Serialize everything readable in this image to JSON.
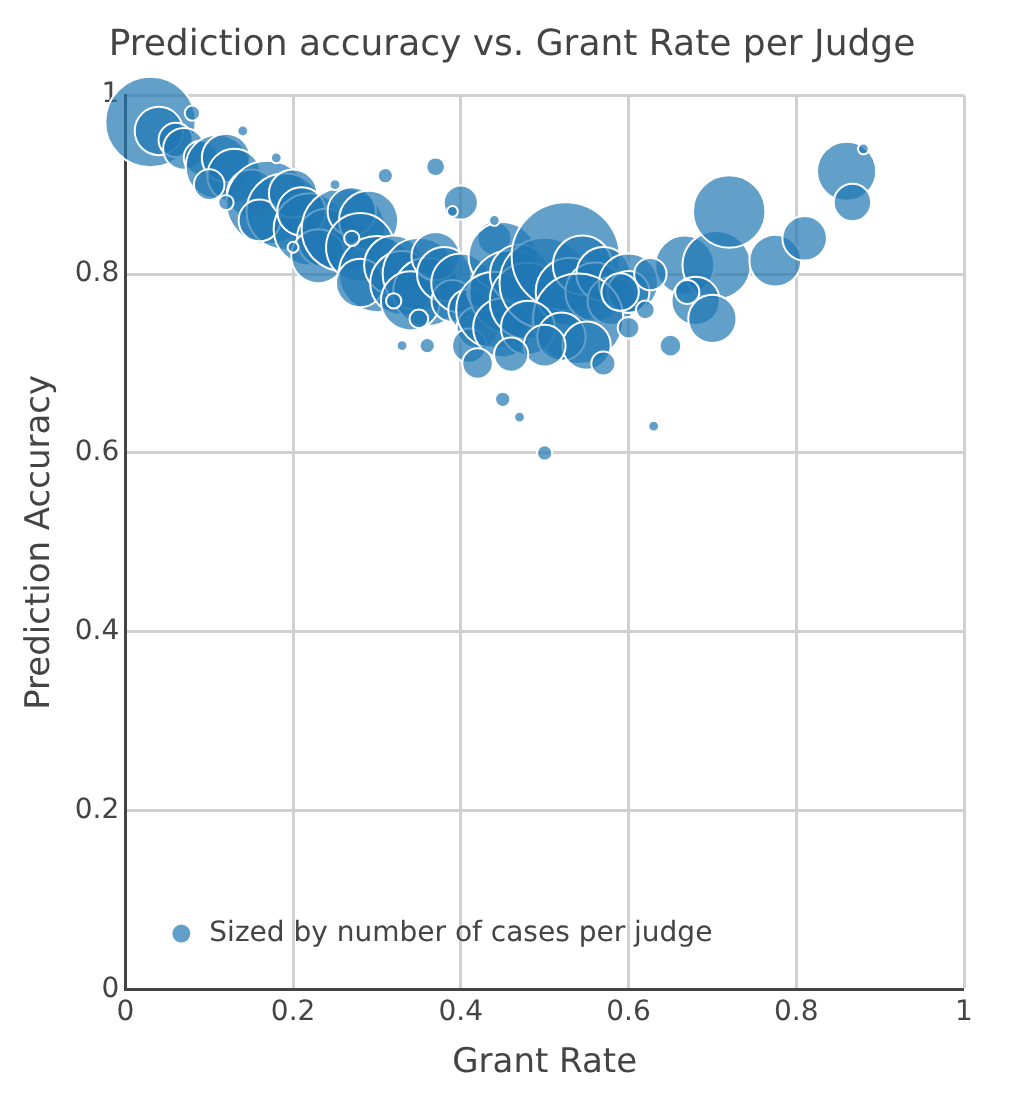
{
  "chart_data": {
    "type": "bubble",
    "title": "Prediction accuracy vs. Grant Rate per Judge",
    "xlabel": "Grant Rate",
    "ylabel": "Prediction Accuracy",
    "xlim": [
      0,
      1
    ],
    "ylim": [
      0,
      1
    ],
    "xticks": [
      0,
      0.2,
      0.4,
      0.6,
      0.8,
      1
    ],
    "yticks": [
      0,
      0.2,
      0.4,
      0.6,
      0.8,
      1
    ],
    "grid": true,
    "legend": "bottom left",
    "marker": "circle",
    "series": [
      {
        "name": "Sized by number of cases per judge",
        "color": "#1f77b4",
        "x": [
          0.03,
          0.04,
          0.06,
          0.07,
          0.09,
          0.11,
          0.12,
          0.13,
          0.1,
          0.15,
          0.17,
          0.19,
          0.16,
          0.2,
          0.22,
          0.21,
          0.24,
          0.23,
          0.26,
          0.27,
          0.29,
          0.28,
          0.3,
          0.28,
          0.32,
          0.33,
          0.35,
          0.36,
          0.34,
          0.37,
          0.38,
          0.39,
          0.4,
          0.41,
          0.42,
          0.41,
          0.43,
          0.44,
          0.45,
          0.46,
          0.44,
          0.45,
          0.47,
          0.48,
          0.5,
          0.525,
          0.53,
          0.545,
          0.56,
          0.57,
          0.58,
          0.6,
          0.6,
          0.54,
          0.48,
          0.52,
          0.55,
          0.57,
          0.5,
          0.46,
          0.42,
          0.4,
          0.37,
          0.47,
          0.5,
          0.45,
          0.33,
          0.36,
          0.65,
          0.667,
          0.705,
          0.68,
          0.7,
          0.72,
          0.775,
          0.81,
          0.86,
          0.867,
          0.626,
          0.62,
          0.59,
          0.63,
          0.88,
          0.08,
          0.14,
          0.18,
          0.25,
          0.31,
          0.39,
          0.44,
          0.12,
          0.2,
          0.27,
          0.35,
          0.67,
          0.6,
          0.32
        ],
        "values": [
          0.97,
          0.96,
          0.95,
          0.94,
          0.93,
          0.92,
          0.93,
          0.91,
          0.9,
          0.89,
          0.88,
          0.87,
          0.86,
          0.89,
          0.85,
          0.87,
          0.84,
          0.82,
          0.85,
          0.87,
          0.86,
          0.83,
          0.8,
          0.79,
          0.81,
          0.79,
          0.8,
          0.78,
          0.77,
          0.82,
          0.8,
          0.77,
          0.79,
          0.76,
          0.74,
          0.72,
          0.78,
          0.84,
          0.82,
          0.78,
          0.76,
          0.74,
          0.8,
          0.77,
          0.79,
          0.82,
          0.78,
          0.81,
          0.78,
          0.8,
          0.77,
          0.79,
          0.78,
          0.75,
          0.74,
          0.73,
          0.72,
          0.7,
          0.72,
          0.71,
          0.7,
          0.88,
          0.92,
          0.64,
          0.6,
          0.66,
          0.72,
          0.72,
          0.72,
          0.81,
          0.81,
          0.77,
          0.75,
          0.87,
          0.815,
          0.84,
          0.915,
          0.88,
          0.8,
          0.76,
          0.78,
          0.63,
          0.94,
          0.98,
          0.96,
          0.93,
          0.9,
          0.91,
          0.87,
          0.86,
          0.88,
          0.83,
          0.84,
          0.75,
          0.78,
          0.74,
          0.77
        ],
        "sizes": [
          0.7,
          0.2,
          0.1,
          0.15,
          0.1,
          0.35,
          0.2,
          0.25,
          0.08,
          0.2,
          0.6,
          0.5,
          0.15,
          0.2,
          0.45,
          0.2,
          0.3,
          0.25,
          0.6,
          0.2,
          0.3,
          0.4,
          0.5,
          0.2,
          0.3,
          0.35,
          0.45,
          0.4,
          0.3,
          0.2,
          0.25,
          0.15,
          0.3,
          0.15,
          0.15,
          0.1,
          0.12,
          0.1,
          0.4,
          0.6,
          0.5,
          0.3,
          0.3,
          0.5,
          0.7,
          1,
          0.4,
          0.3,
          0.3,
          0.25,
          0.2,
          0.3,
          0.15,
          0.7,
          0.25,
          0.2,
          0.2,
          0.05,
          0.15,
          0.1,
          0.08,
          0.1,
          0.03,
          0.01,
          0.02,
          0.02,
          0.01,
          0.02,
          0.04,
          0.3,
          0.4,
          0.2,
          0.2,
          0.45,
          0.23,
          0.17,
          0.3,
          0.12,
          0.09,
          0.03,
          0.12,
          0.01,
          0.01,
          0.02,
          0.01,
          0.01,
          0.01,
          0.02,
          0.01,
          0.01,
          0.02,
          0.01,
          0.02,
          0.03,
          0.05,
          0.04,
          0.02
        ]
      }
    ]
  }
}
